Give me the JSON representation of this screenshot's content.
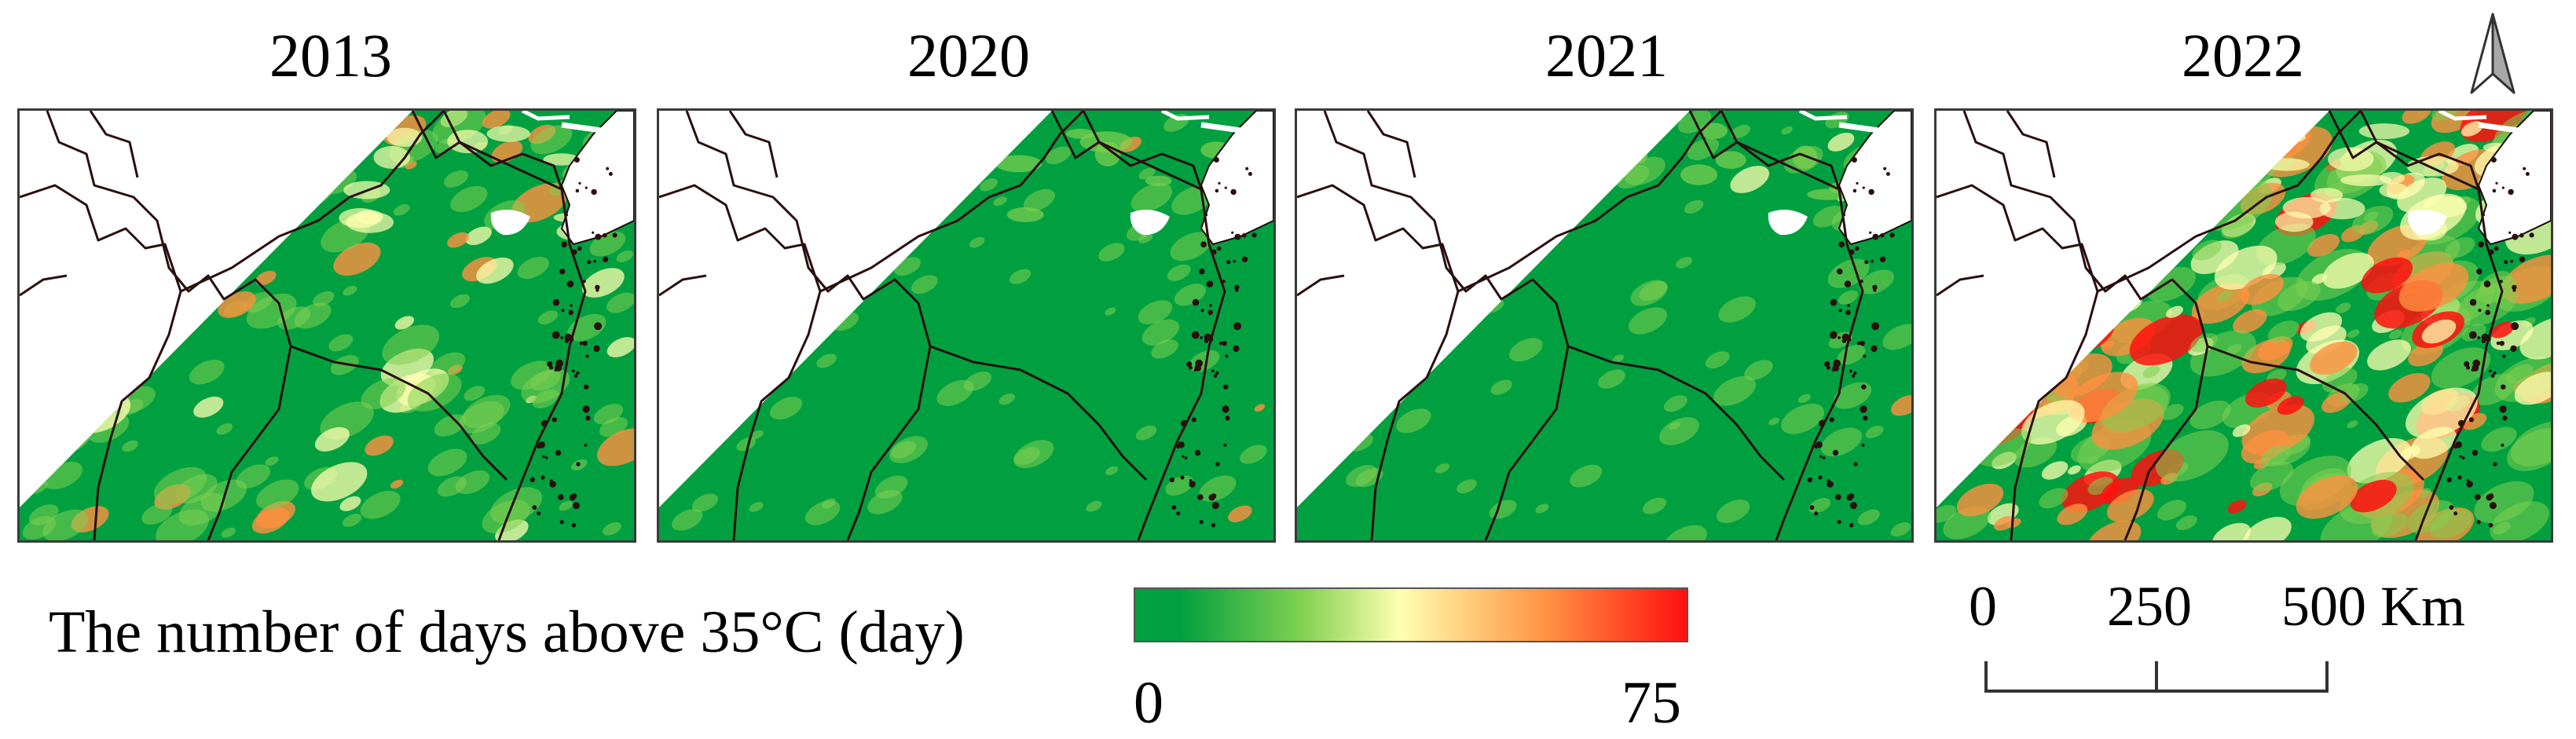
{
  "panels": [
    {
      "year": "2013",
      "heat": 0.55
    },
    {
      "year": "2020",
      "heat": 0.12
    },
    {
      "year": "2021",
      "heat": 0.18
    },
    {
      "year": "2022",
      "heat": 1.0
    }
  ],
  "legend": {
    "title": "The number of days above 35°C (day)",
    "min": "0",
    "max": "75",
    "colors": [
      "#00a040",
      "#7fd050",
      "#ffffb0",
      "#ff9040",
      "#ff1010"
    ]
  },
  "scale_bar": {
    "labels": [
      "0",
      "250",
      "500 Km"
    ]
  },
  "north_arrow": {
    "icon": "north-arrow-icon"
  }
}
